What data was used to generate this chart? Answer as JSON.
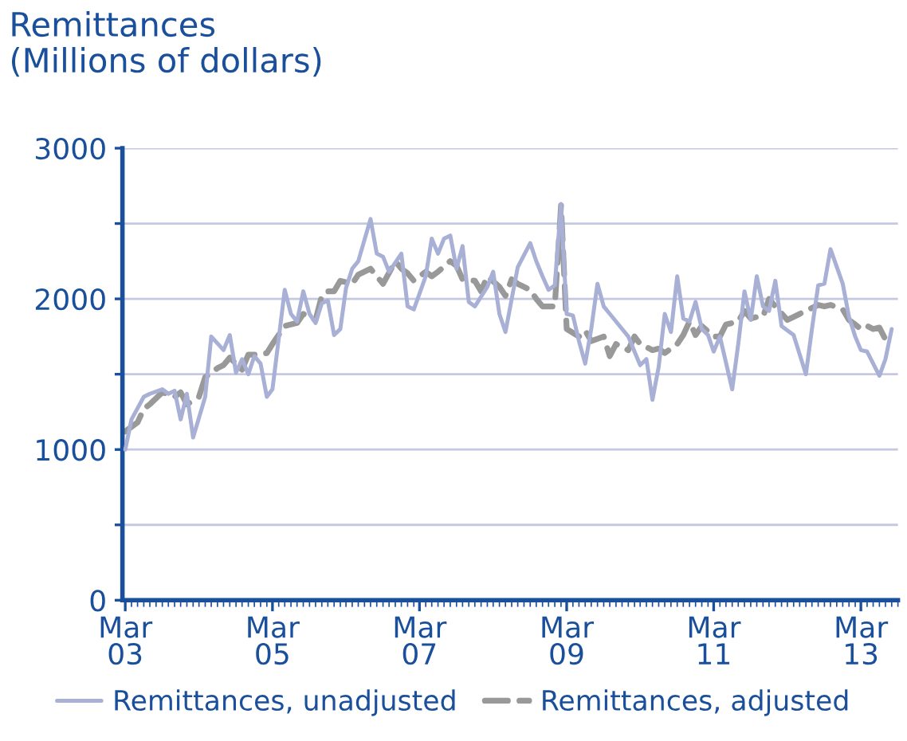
{
  "chart_data": {
    "type": "line",
    "title": "Remittances\n(Millions of dollars)",
    "xlim": [
      "2003-02-15",
      "2013-09-01"
    ],
    "xticks": [
      {
        "value": "2003-03",
        "label": "Mar\n03"
      },
      {
        "value": "2005-03",
        "label": "Mar\n05"
      },
      {
        "value": "2007-03",
        "label": "Mar\n07"
      },
      {
        "value": "2009-03",
        "label": "Mar\n09"
      },
      {
        "value": "2011-03",
        "label": "Mar\n11"
      },
      {
        "value": "2013-03",
        "label": "Mar\n13"
      }
    ],
    "ylim": [
      0,
      3000
    ],
    "yticks": [
      0,
      {
        "value": 500,
        "label": null
      },
      1000,
      {
        "value": 1500,
        "label": null
      },
      2000,
      {
        "value": 2500,
        "label": null
      },
      3000
    ],
    "grid": "y",
    "legend": "bottom",
    "marker": "none",
    "series": [
      {
        "name": "Remittances, unadjusted",
        "color": "#a9b0d6",
        "line_style": "solid",
        "x": [
          "2003-03",
          "2003-04",
          "2003-06",
          "2003-07",
          "2003-09",
          "2003-10",
          "2003-11",
          "2003-12",
          "2004-01",
          "2004-02",
          "2004-04",
          "2004-05",
          "2004-07",
          "2004-08",
          "2004-09",
          "2004-10",
          "2004-11",
          "2004-12",
          "2005-01",
          "2005-02",
          "2005-03",
          "2005-05",
          "2005-06",
          "2005-07",
          "2005-08",
          "2005-09",
          "2005-10",
          "2005-11",
          "2005-12",
          "2006-01",
          "2006-02",
          "2006-03",
          "2006-04",
          "2006-05",
          "2006-07",
          "2006-08",
          "2006-09",
          "2006-10",
          "2006-12",
          "2007-01",
          "2007-02",
          "2007-04",
          "2007-05",
          "2007-06",
          "2007-07",
          "2007-08",
          "2007-09",
          "2007-10",
          "2007-11",
          "2007-12",
          "2008-02",
          "2008-03",
          "2008-04",
          "2008-05",
          "2008-06",
          "2008-07",
          "2008-09",
          "2008-10",
          "2008-11",
          "2008-12",
          "2009-01",
          "2009-02",
          "2009-03",
          "2009-04",
          "2009-05",
          "2009-06",
          "2009-07",
          "2009-08",
          "2009-09",
          "2009-11",
          "2010-01",
          "2010-02",
          "2010-03",
          "2010-04",
          "2010-05",
          "2010-06",
          "2010-07",
          "2010-08",
          "2010-09",
          "2010-10",
          "2010-11",
          "2010-12",
          "2011-01",
          "2011-02",
          "2011-03",
          "2011-04",
          "2011-06",
          "2011-07",
          "2011-08",
          "2011-09",
          "2011-10",
          "2011-11",
          "2011-12",
          "2012-01",
          "2012-02",
          "2012-04",
          "2012-06",
          "2012-07",
          "2012-08",
          "2012-09",
          "2012-10",
          "2012-12",
          "2013-01",
          "2013-02",
          "2013-03",
          "2013-04",
          "2013-06",
          "2013-07",
          "2013-08"
        ],
        "values": [
          1000,
          1200,
          1350,
          1370,
          1400,
          1370,
          1390,
          1200,
          1370,
          1080,
          1350,
          1750,
          1660,
          1760,
          1510,
          1600,
          1500,
          1620,
          1570,
          1350,
          1400,
          2060,
          1900,
          1850,
          2050,
          1900,
          1840,
          1970,
          1990,
          1760,
          1800,
          2070,
          2200,
          2250,
          2530,
          2300,
          2280,
          2180,
          2300,
          1950,
          1930,
          2150,
          2400,
          2300,
          2400,
          2420,
          2200,
          2350,
          1980,
          1950,
          2080,
          2180,
          1900,
          1780,
          2000,
          2210,
          2370,
          2250,
          2150,
          2060,
          2090,
          2630,
          1900,
          1890,
          1720,
          1570,
          1800,
          2100,
          1950,
          1850,
          1750,
          1650,
          1560,
          1600,
          1330,
          1550,
          1900,
          1780,
          2150,
          1870,
          1850,
          1980,
          1800,
          1760,
          1650,
          1750,
          1400,
          1700,
          2050,
          1860,
          2150,
          1950,
          1920,
          2120,
          1820,
          1760,
          1500,
          1800,
          2090,
          2100,
          2330,
          2100,
          1880,
          1750,
          1660,
          1650,
          1490,
          1600,
          1800
        ]
      },
      {
        "name": "Remittances, adjusted",
        "color": "#999999",
        "line_style": "dashed",
        "x": [
          "2003-03",
          "2003-05",
          "2003-06",
          "2003-07",
          "2003-09",
          "2003-11",
          "2003-12",
          "2004-01",
          "2004-03",
          "2004-04",
          "2004-06",
          "2004-07",
          "2004-08",
          "2004-10",
          "2004-11",
          "2004-12",
          "2005-02",
          "2005-03",
          "2005-05",
          "2005-07",
          "2005-08",
          "2005-10",
          "2005-11",
          "2005-12",
          "2006-01",
          "2006-02",
          "2006-04",
          "2006-05",
          "2006-07",
          "2006-08",
          "2006-09",
          "2006-11",
          "2006-12",
          "2007-01",
          "2007-02",
          "2007-04",
          "2007-05",
          "2007-06",
          "2007-08",
          "2007-09",
          "2007-10",
          "2007-12",
          "2008-01",
          "2008-02",
          "2008-04",
          "2008-05",
          "2008-06",
          "2008-07",
          "2008-09",
          "2008-10",
          "2008-11",
          "2009-01",
          "2009-02",
          "2009-03",
          "2009-05",
          "2009-06",
          "2009-07",
          "2009-09",
          "2009-10",
          "2009-11",
          "2010-01",
          "2010-02",
          "2010-03",
          "2010-05",
          "2010-06",
          "2010-07",
          "2010-09",
          "2010-10",
          "2010-11",
          "2010-12",
          "2011-01",
          "2011-03",
          "2011-04",
          "2011-05",
          "2011-07",
          "2011-08",
          "2011-09",
          "2011-10",
          "2011-11",
          "2011-12",
          "2012-01",
          "2012-03",
          "2012-04",
          "2012-05",
          "2012-07",
          "2012-08",
          "2012-09",
          "2012-10",
          "2012-12",
          "2013-01",
          "2013-02",
          "2013-03",
          "2013-04",
          "2013-05",
          "2013-06",
          "2013-07"
        ],
        "values": [
          1120,
          1180,
          1270,
          1300,
          1380,
          1350,
          1380,
          1300,
          1350,
          1480,
          1540,
          1560,
          1610,
          1530,
          1630,
          1630,
          1640,
          1700,
          1820,
          1840,
          1900,
          1860,
          2020,
          2050,
          2050,
          2120,
          2100,
          2160,
          2200,
          2150,
          2100,
          2250,
          2200,
          2170,
          2120,
          2180,
          2150,
          2180,
          2250,
          2220,
          2130,
          2120,
          2050,
          2150,
          2080,
          2020,
          2130,
          2100,
          2060,
          2000,
          1950,
          1950,
          2620,
          1800,
          1750,
          1790,
          1720,
          1750,
          1620,
          1700,
          1660,
          1750,
          1700,
          1660,
          1670,
          1640,
          1700,
          1760,
          1850,
          1760,
          1820,
          1750,
          1750,
          1830,
          1850,
          1920,
          1870,
          1880,
          1880,
          2000,
          1950,
          1860,
          1880,
          1900,
          1940,
          1960,
          1950,
          1960,
          1930,
          1860,
          1830,
          1800,
          1820,
          1800,
          1810,
          1730
        ]
      }
    ]
  }
}
